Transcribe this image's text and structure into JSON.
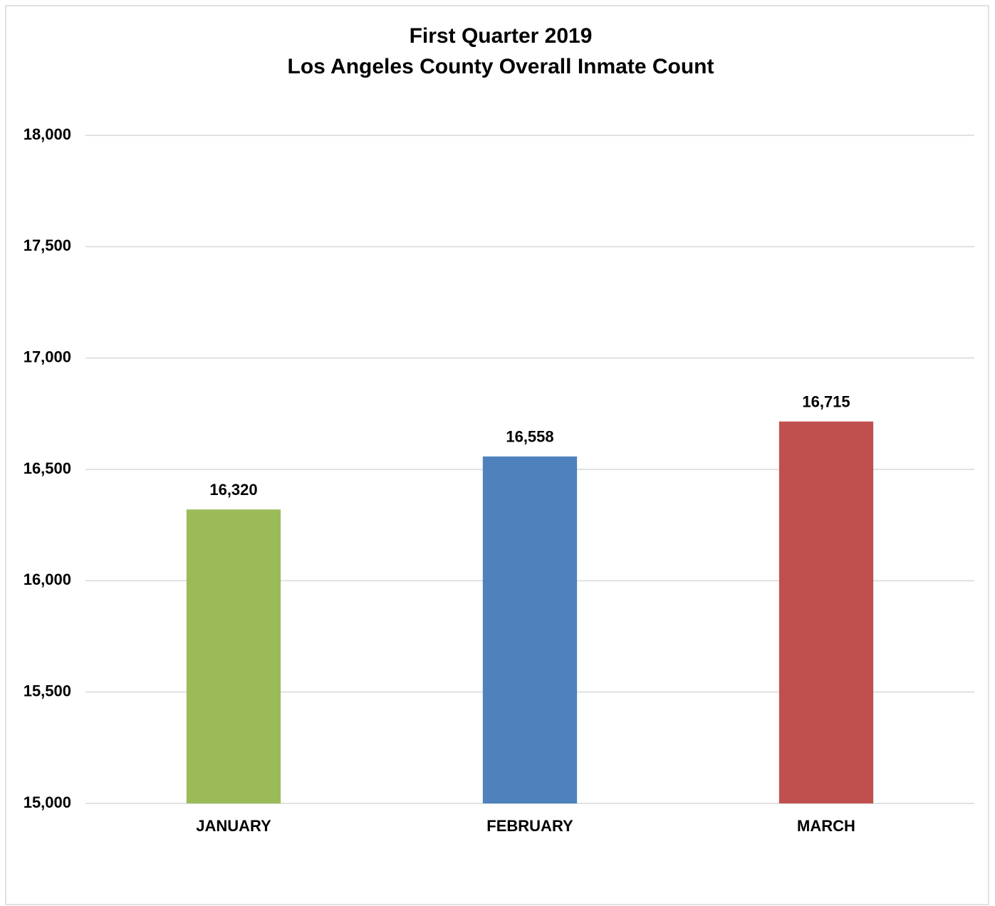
{
  "chart_data": {
    "type": "bar",
    "title": [
      "First Quarter 2019",
      "Los Angeles County Overall Inmate Count"
    ],
    "categories": [
      "JANUARY",
      "FEBRUARY",
      "MARCH"
    ],
    "values": [
      16320,
      16558,
      16715
    ],
    "value_labels": [
      "16,320",
      "16,558",
      "16,715"
    ],
    "colors": [
      "#9bbb59",
      "#4f81bd",
      "#c0504d"
    ],
    "ylim": [
      15000,
      18000
    ],
    "yticks": [
      {
        "value": 15000,
        "label": "15,000"
      },
      {
        "value": 15500,
        "label": "15,500"
      },
      {
        "value": 16000,
        "label": "16,000"
      },
      {
        "value": 16500,
        "label": "16,500"
      },
      {
        "value": 17000,
        "label": "17,000"
      },
      {
        "value": 17500,
        "label": "17,500"
      },
      {
        "value": 18000,
        "label": "18,000"
      }
    ],
    "grid": true
  }
}
